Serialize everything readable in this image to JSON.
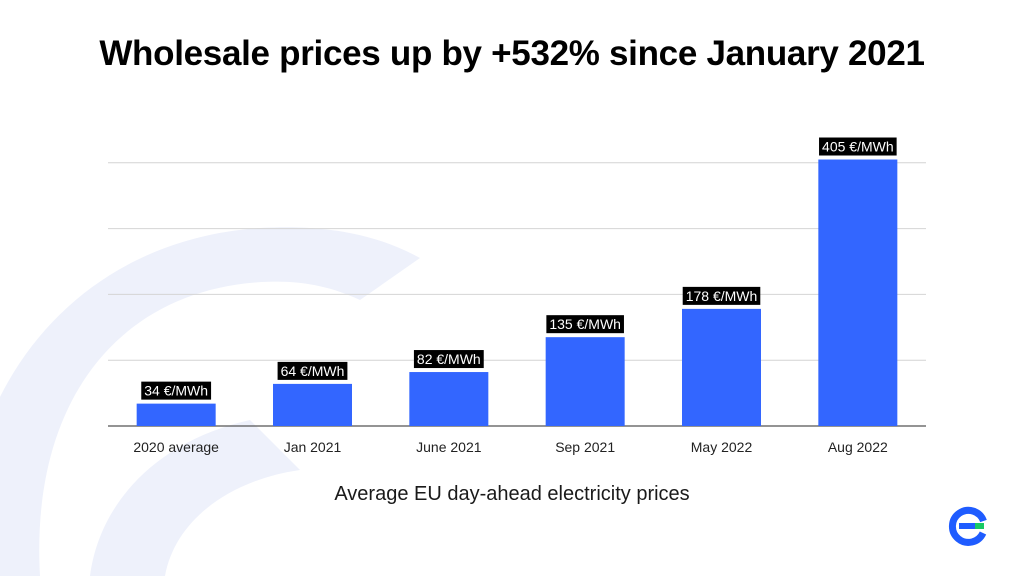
{
  "chart_data": {
    "type": "bar",
    "title": "Wholesale prices up by +532% since January 2021",
    "xlabel": "Average EU day-ahead electricity prices",
    "ylabel": "",
    "categories": [
      "2020 average",
      "Jan 2021",
      "June 2021",
      "Sep 2021",
      "May 2022",
      "Aug 2022"
    ],
    "values": [
      34,
      64,
      82,
      135,
      178,
      405
    ],
    "data_labels": [
      "34 €/MWh",
      "64 €/MWh",
      "82 €/MWh",
      "135 €/MWh",
      "178 €/MWh",
      "405 €/MWh"
    ],
    "unit": "€/MWh",
    "ylim": [
      0,
      500
    ],
    "gridlines": [
      0,
      100,
      200,
      300,
      400,
      500
    ],
    "grid": true,
    "legend": "none"
  },
  "colors": {
    "bar": "#3366ff",
    "label_bg": "#000000",
    "label_text": "#ffffff",
    "grid": "#d4d4d4",
    "axis": "#555555",
    "background_swoosh": "#eef1fb",
    "logo_blue": "#1f5cff",
    "logo_green": "#17c964"
  },
  "icons": {
    "brand_logo": "e-logo-icon",
    "background": "background-swoosh"
  }
}
